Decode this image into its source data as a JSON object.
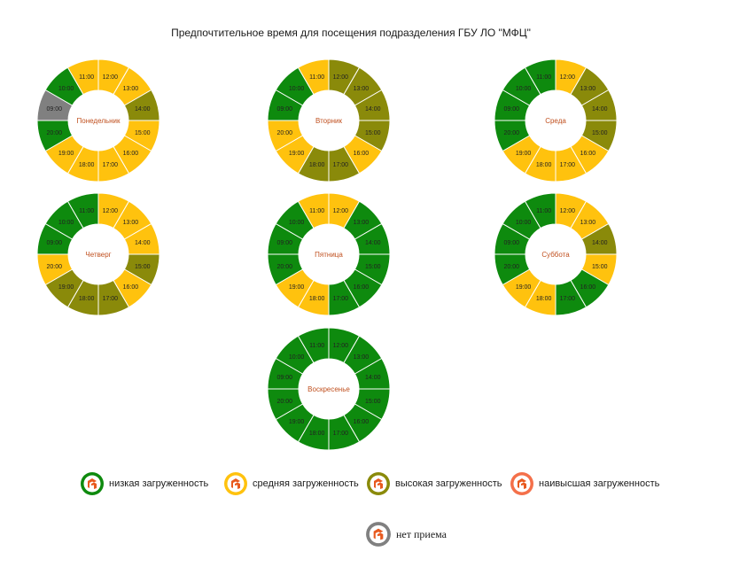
{
  "title": "Предпочтительное время для посещения подразделения ГБУ ЛО \"МФЦ\"",
  "colors": {
    "low": "#0e8a0e",
    "medium": "#ffc20e",
    "high": "#8a8a0a",
    "highest": "#f4704a",
    "closed": "#808080"
  },
  "chart_data": {
    "type": "pie",
    "variant": "donut",
    "legend": [
      {
        "key": "low",
        "label": "низкая загруженность"
      },
      {
        "key": "medium",
        "label": "средняя загруженность"
      },
      {
        "key": "high",
        "label": "высокая загруженность"
      },
      {
        "key": "highest",
        "label": "наивысшая загруженность"
      },
      {
        "key": "closed",
        "label": "нет приема"
      }
    ],
    "hours": [
      "12:00",
      "13:00",
      "14:00",
      "15:00",
      "16:00",
      "17:00",
      "18:00",
      "19:00",
      "20:00",
      "09:00",
      "10:00",
      "11:00"
    ],
    "days": [
      {
        "name": "Понедельник",
        "slices": [
          {
            "hour": "12:00",
            "level": "medium"
          },
          {
            "hour": "13:00",
            "level": "medium"
          },
          {
            "hour": "14:00",
            "level": "high"
          },
          {
            "hour": "15:00",
            "level": "medium"
          },
          {
            "hour": "16:00",
            "level": "medium"
          },
          {
            "hour": "17:00",
            "level": "medium"
          },
          {
            "hour": "18:00",
            "level": "medium"
          },
          {
            "hour": "19:00",
            "level": "medium"
          },
          {
            "hour": "20:00",
            "level": "low"
          },
          {
            "hour": "09:00",
            "level": "closed"
          },
          {
            "hour": "10:00",
            "level": "low"
          },
          {
            "hour": "11:00",
            "level": "medium"
          }
        ]
      },
      {
        "name": "Вторник",
        "slices": [
          {
            "hour": "12:00",
            "level": "high"
          },
          {
            "hour": "13:00",
            "level": "high"
          },
          {
            "hour": "14:00",
            "level": "high"
          },
          {
            "hour": "15:00",
            "level": "high"
          },
          {
            "hour": "16:00",
            "level": "medium"
          },
          {
            "hour": "17:00",
            "level": "high"
          },
          {
            "hour": "18:00",
            "level": "high"
          },
          {
            "hour": "19:00",
            "level": "medium"
          },
          {
            "hour": "20:00",
            "level": "medium"
          },
          {
            "hour": "09:00",
            "level": "low"
          },
          {
            "hour": "10:00",
            "level": "low"
          },
          {
            "hour": "11:00",
            "level": "medium"
          }
        ]
      },
      {
        "name": "Среда",
        "slices": [
          {
            "hour": "12:00",
            "level": "medium"
          },
          {
            "hour": "13:00",
            "level": "high"
          },
          {
            "hour": "14:00",
            "level": "high"
          },
          {
            "hour": "15:00",
            "level": "high"
          },
          {
            "hour": "16:00",
            "level": "medium"
          },
          {
            "hour": "17:00",
            "level": "medium"
          },
          {
            "hour": "18:00",
            "level": "medium"
          },
          {
            "hour": "19:00",
            "level": "medium"
          },
          {
            "hour": "20:00",
            "level": "low"
          },
          {
            "hour": "09:00",
            "level": "low"
          },
          {
            "hour": "10:00",
            "level": "low"
          },
          {
            "hour": "11:00",
            "level": "low"
          }
        ]
      },
      {
        "name": "Четверг",
        "slices": [
          {
            "hour": "12:00",
            "level": "medium"
          },
          {
            "hour": "13:00",
            "level": "medium"
          },
          {
            "hour": "14:00",
            "level": "medium"
          },
          {
            "hour": "15:00",
            "level": "high"
          },
          {
            "hour": "16:00",
            "level": "medium"
          },
          {
            "hour": "17:00",
            "level": "high"
          },
          {
            "hour": "18:00",
            "level": "high"
          },
          {
            "hour": "19:00",
            "level": "high"
          },
          {
            "hour": "20:00",
            "level": "medium"
          },
          {
            "hour": "09:00",
            "level": "low"
          },
          {
            "hour": "10:00",
            "level": "low"
          },
          {
            "hour": "11:00",
            "level": "low"
          }
        ]
      },
      {
        "name": "Пятница",
        "slices": [
          {
            "hour": "12:00",
            "level": "medium"
          },
          {
            "hour": "13:00",
            "level": "low"
          },
          {
            "hour": "14:00",
            "level": "low"
          },
          {
            "hour": "15:00",
            "level": "low"
          },
          {
            "hour": "16:00",
            "level": "low"
          },
          {
            "hour": "17:00",
            "level": "low"
          },
          {
            "hour": "18:00",
            "level": "medium"
          },
          {
            "hour": "19:00",
            "level": "medium"
          },
          {
            "hour": "20:00",
            "level": "low"
          },
          {
            "hour": "09:00",
            "level": "low"
          },
          {
            "hour": "10:00",
            "level": "low"
          },
          {
            "hour": "11:00",
            "level": "medium"
          }
        ]
      },
      {
        "name": "Суббота",
        "slices": [
          {
            "hour": "12:00",
            "level": "medium"
          },
          {
            "hour": "13:00",
            "level": "medium"
          },
          {
            "hour": "14:00",
            "level": "high"
          },
          {
            "hour": "15:00",
            "level": "medium"
          },
          {
            "hour": "16:00",
            "level": "low"
          },
          {
            "hour": "17:00",
            "level": "low"
          },
          {
            "hour": "18:00",
            "level": "medium"
          },
          {
            "hour": "19:00",
            "level": "medium"
          },
          {
            "hour": "20:00",
            "level": "low"
          },
          {
            "hour": "09:00",
            "level": "low"
          },
          {
            "hour": "10:00",
            "level": "low"
          },
          {
            "hour": "11:00",
            "level": "low"
          }
        ]
      },
      {
        "name": "Воскресенье",
        "slices": [
          {
            "hour": "12:00",
            "level": "low"
          },
          {
            "hour": "13:00",
            "level": "low"
          },
          {
            "hour": "14:00",
            "level": "low"
          },
          {
            "hour": "15:00",
            "level": "low"
          },
          {
            "hour": "16:00",
            "level": "low"
          },
          {
            "hour": "17:00",
            "level": "low"
          },
          {
            "hour": "18:00",
            "level": "low"
          },
          {
            "hour": "19:00",
            "level": "low"
          },
          {
            "hour": "20:00",
            "level": "low"
          },
          {
            "hour": "09:00",
            "level": "low"
          },
          {
            "hour": "10:00",
            "level": "low"
          },
          {
            "hour": "11:00",
            "level": "low"
          }
        ]
      }
    ]
  }
}
